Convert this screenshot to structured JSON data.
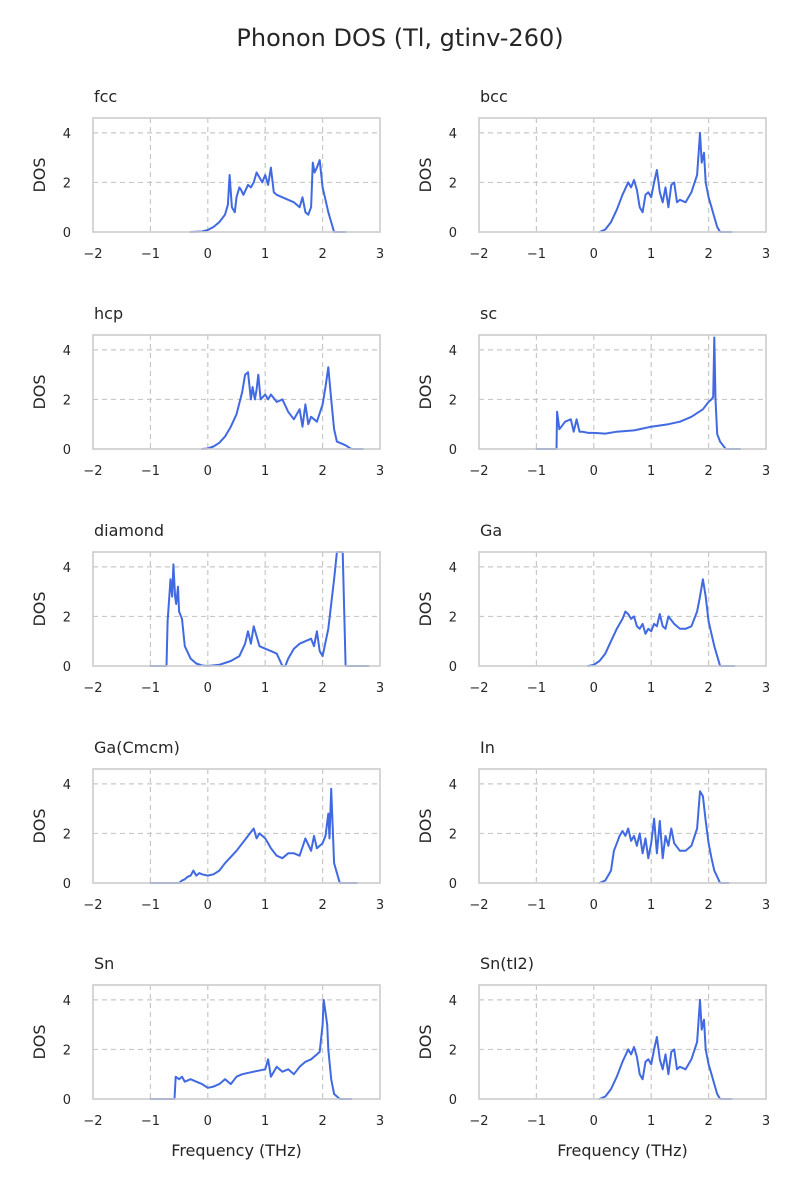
{
  "figure": {
    "title": "Phonon DOS (Tl, gtinv-260)",
    "line_color": "#4169e1",
    "grid_color": "#c8c8c8"
  },
  "chart_data": [
    {
      "type": "line",
      "title": "fcc",
      "xlabel": "",
      "ylabel": "DOS",
      "xlim": [
        -2,
        3
      ],
      "ylim": [
        0,
        4.6
      ],
      "xticks": [
        -2,
        -1,
        0,
        1,
        2,
        3
      ],
      "yticks": [
        0,
        2,
        4
      ],
      "grid": true,
      "x": [
        -0.3,
        -0.1,
        0.0,
        0.1,
        0.2,
        0.3,
        0.35,
        0.38,
        0.42,
        0.47,
        0.5,
        0.55,
        0.58,
        0.62,
        0.7,
        0.75,
        0.8,
        0.85,
        0.9,
        0.95,
        1.0,
        1.05,
        1.1,
        1.15,
        1.2,
        1.3,
        1.4,
        1.5,
        1.6,
        1.65,
        1.7,
        1.75,
        1.8,
        1.83,
        1.86,
        1.9,
        1.95,
        2.0,
        2.05,
        2.1,
        2.2,
        2.3,
        2.4
      ],
      "y": [
        0,
        0.02,
        0.08,
        0.2,
        0.4,
        0.7,
        1.1,
        2.3,
        1.0,
        0.8,
        1.4,
        1.8,
        1.7,
        1.5,
        1.9,
        1.8,
        2.0,
        2.4,
        2.2,
        2.0,
        2.3,
        1.9,
        2.6,
        1.6,
        1.5,
        1.4,
        1.3,
        1.2,
        1.0,
        1.4,
        0.8,
        0.7,
        1.0,
        2.8,
        2.4,
        2.6,
        2.9,
        1.8,
        1.3,
        0.8,
        0.0,
        0,
        0
      ]
    },
    {
      "type": "line",
      "title": "bcc",
      "xlabel": "",
      "ylabel": "DOS",
      "xlim": [
        -2,
        3
      ],
      "ylim": [
        0,
        4.6
      ],
      "xticks": [
        -2,
        -1,
        0,
        1,
        2,
        3
      ],
      "yticks": [
        0,
        2,
        4
      ],
      "grid": true,
      "x": [
        0.1,
        0.2,
        0.3,
        0.4,
        0.5,
        0.6,
        0.65,
        0.7,
        0.75,
        0.8,
        0.85,
        0.9,
        0.95,
        1.0,
        1.05,
        1.1,
        1.15,
        1.2,
        1.25,
        1.3,
        1.35,
        1.4,
        1.45,
        1.5,
        1.6,
        1.7,
        1.8,
        1.85,
        1.88,
        1.92,
        1.95,
        2.0,
        2.05,
        2.1,
        2.15,
        2.2,
        2.3,
        2.4
      ],
      "y": [
        0,
        0.1,
        0.4,
        0.9,
        1.5,
        2.0,
        1.8,
        2.1,
        1.7,
        1.0,
        0.8,
        1.5,
        1.6,
        1.4,
        2.0,
        2.5,
        1.6,
        1.2,
        1.8,
        1.0,
        1.9,
        2.0,
        1.2,
        1.3,
        1.2,
        1.6,
        2.3,
        4.0,
        2.8,
        3.2,
        2.0,
        1.4,
        1.0,
        0.6,
        0.2,
        0.0,
        0,
        0
      ]
    },
    {
      "type": "line",
      "title": "hcp",
      "xlabel": "",
      "ylabel": "DOS",
      "xlim": [
        -2,
        3
      ],
      "ylim": [
        0,
        4.6
      ],
      "xticks": [
        -2,
        -1,
        0,
        1,
        2,
        3
      ],
      "yticks": [
        0,
        2,
        4
      ],
      "grid": true,
      "x": [
        -0.1,
        0.0,
        0.1,
        0.2,
        0.3,
        0.4,
        0.5,
        0.6,
        0.65,
        0.7,
        0.75,
        0.78,
        0.82,
        0.85,
        0.88,
        0.92,
        1.0,
        1.05,
        1.1,
        1.2,
        1.3,
        1.4,
        1.5,
        1.6,
        1.65,
        1.7,
        1.75,
        1.8,
        1.9,
        2.0,
        2.05,
        2.1,
        2.15,
        2.2,
        2.25,
        2.3,
        2.4,
        2.5,
        2.7
      ],
      "y": [
        0,
        0.02,
        0.1,
        0.25,
        0.5,
        0.9,
        1.4,
        2.3,
        3.0,
        3.1,
        2.0,
        2.5,
        2.0,
        2.4,
        3.0,
        2.0,
        2.2,
        2.0,
        2.2,
        1.9,
        2.0,
        1.5,
        1.2,
        1.6,
        0.9,
        1.8,
        1.0,
        1.3,
        1.1,
        1.8,
        2.5,
        3.3,
        2.0,
        0.8,
        0.3,
        0.25,
        0.15,
        0.0,
        0
      ]
    },
    {
      "type": "line",
      "title": "sc",
      "xlabel": "",
      "ylabel": "DOS",
      "xlim": [
        -2,
        3
      ],
      "ylim": [
        0,
        4.6
      ],
      "xticks": [
        -2,
        -1,
        0,
        1,
        2,
        3
      ],
      "yticks": [
        0,
        2,
        4
      ],
      "grid": true,
      "x": [
        -1.0,
        -0.65,
        -0.64,
        -0.6,
        -0.5,
        -0.4,
        -0.35,
        -0.3,
        -0.25,
        -0.2,
        -0.1,
        0.0,
        0.2,
        0.4,
        0.7,
        1.0,
        1.3,
        1.5,
        1.7,
        1.9,
        2.0,
        2.05,
        2.08,
        2.1,
        2.12,
        2.15,
        2.2,
        2.3,
        2.55
      ],
      "y": [
        0,
        0,
        1.5,
        0.8,
        1.1,
        1.2,
        0.7,
        1.2,
        0.7,
        0.7,
        0.65,
        0.65,
        0.62,
        0.7,
        0.75,
        0.9,
        1.0,
        1.1,
        1.3,
        1.6,
        1.9,
        2.0,
        2.1,
        4.5,
        2.0,
        0.6,
        0.3,
        0.0,
        0
      ]
    },
    {
      "type": "line",
      "title": "diamond",
      "xlabel": "",
      "ylabel": "DOS",
      "xlim": [
        -2,
        3
      ],
      "ylim": [
        0,
        4.6
      ],
      "xticks": [
        -2,
        -1,
        0,
        1,
        2,
        3
      ],
      "yticks": [
        0,
        2,
        4
      ],
      "grid": true,
      "x": [
        -1.0,
        -0.72,
        -0.7,
        -0.65,
        -0.62,
        -0.6,
        -0.57,
        -0.55,
        -0.52,
        -0.5,
        -0.45,
        -0.4,
        -0.3,
        -0.2,
        -0.1,
        0.0,
        0.2,
        0.4,
        0.55,
        0.65,
        0.7,
        0.75,
        0.8,
        0.9,
        1.0,
        1.1,
        1.2,
        1.3,
        1.35,
        1.4,
        1.5,
        1.6,
        1.7,
        1.8,
        1.85,
        1.9,
        1.95,
        2.0,
        2.1,
        2.2,
        2.25,
        2.3,
        2.33,
        2.35,
        2.4,
        2.5,
        2.8
      ],
      "y": [
        0,
        0,
        1.8,
        3.5,
        2.8,
        4.1,
        2.8,
        2.5,
        3.2,
        2.2,
        1.9,
        0.8,
        0.3,
        0.1,
        0.02,
        0.0,
        0.05,
        0.2,
        0.4,
        0.9,
        1.4,
        0.9,
        1.6,
        0.8,
        0.7,
        0.6,
        0.5,
        0.0,
        0.0,
        0.3,
        0.7,
        0.9,
        1.0,
        1.1,
        0.8,
        1.4,
        0.6,
        0.4,
        1.5,
        3.5,
        4.6,
        4.6,
        4.6,
        4.6,
        0.0,
        0,
        0
      ]
    },
    {
      "type": "line",
      "title": "Ga",
      "xlabel": "",
      "ylabel": "DOS",
      "xlim": [
        -2,
        3
      ],
      "ylim": [
        0,
        4.6
      ],
      "xticks": [
        -2,
        -1,
        0,
        1,
        2,
        3
      ],
      "yticks": [
        0,
        2,
        4
      ],
      "grid": true,
      "x": [
        -0.1,
        0.0,
        0.1,
        0.2,
        0.3,
        0.4,
        0.5,
        0.55,
        0.6,
        0.65,
        0.7,
        0.75,
        0.8,
        0.85,
        0.9,
        0.95,
        1.0,
        1.05,
        1.1,
        1.15,
        1.2,
        1.25,
        1.3,
        1.4,
        1.5,
        1.6,
        1.7,
        1.8,
        1.85,
        1.9,
        1.95,
        2.0,
        2.1,
        2.2,
        2.3,
        2.45
      ],
      "y": [
        0,
        0.05,
        0.2,
        0.5,
        1.0,
        1.5,
        1.9,
        2.2,
        2.1,
        1.9,
        2.0,
        1.6,
        1.5,
        1.7,
        1.3,
        1.5,
        1.4,
        1.7,
        1.6,
        2.1,
        1.6,
        1.5,
        2.0,
        1.7,
        1.5,
        1.5,
        1.6,
        2.2,
        2.8,
        3.5,
        2.8,
        1.8,
        0.8,
        0.0,
        0.0,
        0
      ]
    },
    {
      "type": "line",
      "title": "Ga(Cmcm)",
      "xlabel": "",
      "ylabel": "DOS",
      "xlim": [
        -2,
        3
      ],
      "ylim": [
        0,
        4.6
      ],
      "xticks": [
        -2,
        -1,
        0,
        1,
        2,
        3
      ],
      "yticks": [
        0,
        2,
        4
      ],
      "grid": true,
      "x": [
        -1.0,
        -0.5,
        -0.45,
        -0.4,
        -0.35,
        -0.3,
        -0.25,
        -0.2,
        -0.15,
        -0.1,
        0.0,
        0.1,
        0.2,
        0.3,
        0.5,
        0.7,
        0.8,
        0.85,
        0.9,
        1.0,
        1.05,
        1.1,
        1.2,
        1.3,
        1.4,
        1.5,
        1.6,
        1.7,
        1.8,
        1.85,
        1.9,
        2.0,
        2.05,
        2.1,
        2.12,
        2.15,
        2.2,
        2.3,
        2.6
      ],
      "y": [
        0,
        0,
        0.1,
        0.15,
        0.25,
        0.3,
        0.5,
        0.3,
        0.4,
        0.35,
        0.3,
        0.35,
        0.5,
        0.8,
        1.3,
        1.9,
        2.2,
        1.8,
        2.0,
        1.8,
        1.6,
        1.4,
        1.1,
        1.0,
        1.2,
        1.2,
        1.1,
        1.8,
        1.3,
        1.9,
        1.4,
        1.6,
        1.9,
        2.8,
        1.8,
        3.8,
        0.8,
        0.0,
        0
      ]
    },
    {
      "type": "line",
      "title": "In",
      "xlabel": "",
      "ylabel": "DOS",
      "xlim": [
        -2,
        3
      ],
      "ylim": [
        0,
        4.6
      ],
      "xticks": [
        -2,
        -1,
        0,
        1,
        2,
        3
      ],
      "yticks": [
        0,
        2,
        4
      ],
      "grid": true,
      "x": [
        0.1,
        0.2,
        0.3,
        0.35,
        0.4,
        0.45,
        0.5,
        0.55,
        0.6,
        0.65,
        0.7,
        0.75,
        0.8,
        0.85,
        0.9,
        0.95,
        1.0,
        1.05,
        1.1,
        1.15,
        1.2,
        1.25,
        1.3,
        1.35,
        1.4,
        1.5,
        1.6,
        1.7,
        1.8,
        1.85,
        1.9,
        1.95,
        2.0,
        2.05,
        2.1,
        2.2,
        2.35
      ],
      "y": [
        0,
        0.1,
        0.5,
        1.3,
        1.6,
        1.9,
        2.1,
        1.9,
        2.2,
        1.7,
        1.9,
        1.5,
        2.0,
        1.2,
        1.8,
        1.0,
        1.6,
        2.6,
        1.2,
        2.5,
        1.0,
        1.9,
        1.5,
        2.2,
        1.6,
        1.3,
        1.3,
        1.5,
        2.2,
        3.7,
        3.5,
        2.5,
        1.6,
        1.0,
        0.5,
        0.0,
        0
      ]
    },
    {
      "type": "line",
      "title": "Sn",
      "xlabel": "Frequency (THz)",
      "ylabel": "DOS",
      "xlim": [
        -2,
        3
      ],
      "ylim": [
        0,
        4.6
      ],
      "xticks": [
        -2,
        -1,
        0,
        1,
        2,
        3
      ],
      "yticks": [
        0,
        2,
        4
      ],
      "grid": true,
      "x": [
        -1.0,
        -0.58,
        -0.56,
        -0.5,
        -0.45,
        -0.4,
        -0.3,
        -0.2,
        -0.1,
        0.0,
        0.1,
        0.2,
        0.3,
        0.4,
        0.5,
        0.6,
        0.8,
        1.0,
        1.05,
        1.1,
        1.2,
        1.3,
        1.4,
        1.5,
        1.6,
        1.7,
        1.8,
        1.9,
        1.95,
        2.0,
        2.02,
        2.05,
        2.08,
        2.1,
        2.15,
        2.2,
        2.3,
        2.5
      ],
      "y": [
        0,
        0,
        0.9,
        0.8,
        0.9,
        0.7,
        0.8,
        0.7,
        0.6,
        0.45,
        0.5,
        0.6,
        0.8,
        0.6,
        0.9,
        1.0,
        1.1,
        1.2,
        1.6,
        0.9,
        1.3,
        1.1,
        1.2,
        1.0,
        1.3,
        1.5,
        1.6,
        1.8,
        1.9,
        3.0,
        4.0,
        3.5,
        3.0,
        2.0,
        0.8,
        0.2,
        0.0,
        0
      ]
    },
    {
      "type": "line",
      "title": "Sn(tI2)",
      "xlabel": "Frequency (THz)",
      "ylabel": "DOS",
      "xlim": [
        -2,
        3
      ],
      "ylim": [
        0,
        4.6
      ],
      "xticks": [
        -2,
        -1,
        0,
        1,
        2,
        3
      ],
      "yticks": [
        0,
        2,
        4
      ],
      "grid": true,
      "x": [
        0.1,
        0.2,
        0.3,
        0.4,
        0.5,
        0.6,
        0.65,
        0.7,
        0.75,
        0.8,
        0.85,
        0.9,
        0.95,
        1.0,
        1.05,
        1.1,
        1.15,
        1.2,
        1.25,
        1.3,
        1.35,
        1.4,
        1.45,
        1.5,
        1.6,
        1.7,
        1.8,
        1.85,
        1.88,
        1.92,
        1.95,
        2.0,
        2.05,
        2.1,
        2.15,
        2.2,
        2.3,
        2.4
      ],
      "y": [
        0,
        0.1,
        0.4,
        0.9,
        1.5,
        2.0,
        1.8,
        2.1,
        1.7,
        1.0,
        0.8,
        1.5,
        1.6,
        1.4,
        2.0,
        2.5,
        1.6,
        1.2,
        1.8,
        1.0,
        1.9,
        2.0,
        1.2,
        1.3,
        1.2,
        1.6,
        2.3,
        4.0,
        2.8,
        3.2,
        2.0,
        1.4,
        1.0,
        0.6,
        0.2,
        0.0,
        0,
        0
      ]
    }
  ]
}
